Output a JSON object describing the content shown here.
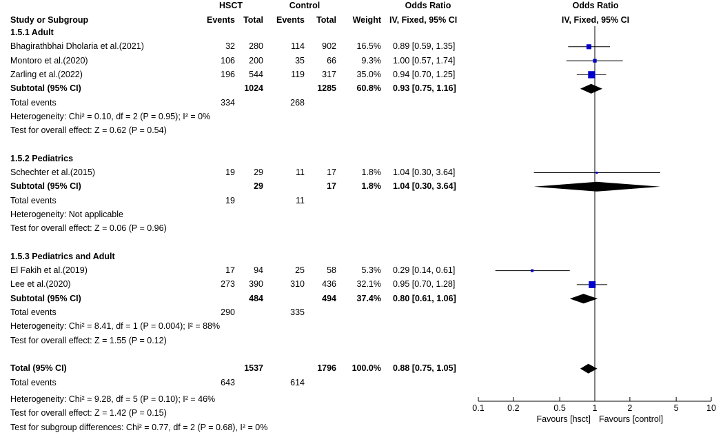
{
  "header": {
    "hsct": "HSCT",
    "control": "Control",
    "odds_ratio_table": "Odds Ratio",
    "odds_ratio_plot": "Odds Ratio",
    "study": "Study or Subgroup",
    "events1": "Events",
    "total1": "Total",
    "events2": "Events",
    "total2": "Total",
    "weight": "Weight",
    "method_table": "IV, Fixed, 95% CI",
    "method_plot": "IV, Fixed, 95% CI"
  },
  "rows": [
    {
      "kind": "group",
      "label": "1.5.1 Adult"
    },
    {
      "kind": "study",
      "label": "Bhagirathbhai Dholaria et al.(2021)",
      "e1": "32",
      "n1": "280",
      "e2": "114",
      "n2": "902",
      "w": "16.5%",
      "ci": "0.89 [0.59, 1.35]"
    },
    {
      "kind": "study",
      "label": "Montoro et al.(2020)",
      "e1": "106",
      "n1": "200",
      "e2": "35",
      "n2": "66",
      "w": "9.3%",
      "ci": "1.00 [0.57, 1.74]"
    },
    {
      "kind": "study",
      "label": "Zarling et al.(2022)",
      "e1": "196",
      "n1": "544",
      "e2": "119",
      "n2": "317",
      "w": "35.0%",
      "ci": "0.94 [0.70, 1.25]"
    },
    {
      "kind": "subtotal",
      "label": "Subtotal (95% CI)",
      "n1": "1024",
      "n2": "1285",
      "w": "60.8%",
      "ci": "0.93 [0.75, 1.16]"
    },
    {
      "kind": "events",
      "label": "Total events",
      "e1": "334",
      "e2": "268"
    },
    {
      "kind": "note",
      "label": "Heterogeneity: Chi² = 0.10, df = 2 (P = 0.95); I² = 0%"
    },
    {
      "kind": "note",
      "label": "Test for overall effect: Z = 0.62 (P = 0.54)"
    },
    {
      "kind": "blank"
    },
    {
      "kind": "group",
      "label": "1.5.2 Pediatrics"
    },
    {
      "kind": "study",
      "label": "Schechter et al.(2015)",
      "e1": "19",
      "n1": "29",
      "e2": "11",
      "n2": "17",
      "w": "1.8%",
      "ci": "1.04 [0.30, 3.64]"
    },
    {
      "kind": "subtotal",
      "label": "Subtotal (95% CI)",
      "n1": "29",
      "n2": "17",
      "w": "1.8%",
      "ci": "1.04 [0.30, 3.64]"
    },
    {
      "kind": "events",
      "label": "Total events",
      "e1": "19",
      "e2": "11"
    },
    {
      "kind": "note",
      "label": "Heterogeneity: Not applicable"
    },
    {
      "kind": "note",
      "label": "Test for overall effect: Z = 0.06 (P = 0.96)"
    },
    {
      "kind": "blank"
    },
    {
      "kind": "group",
      "label": "1.5.3 Pediatrics and Adult"
    },
    {
      "kind": "study",
      "label": "El Fakih et al.(2019)",
      "e1": "17",
      "n1": "94",
      "e2": "25",
      "n2": "58",
      "w": "5.3%",
      "ci": "0.29 [0.14, 0.61]"
    },
    {
      "kind": "study",
      "label": "Lee et al.(2020)",
      "e1": "273",
      "n1": "390",
      "e2": "310",
      "n2": "436",
      "w": "32.1%",
      "ci": "0.95 [0.70, 1.28]"
    },
    {
      "kind": "subtotal",
      "label": "Subtotal (95% CI)",
      "n1": "484",
      "n2": "494",
      "w": "37.4%",
      "ci": "0.80 [0.61, 1.06]"
    },
    {
      "kind": "events",
      "label": "Total events",
      "e1": "290",
      "e2": "335"
    },
    {
      "kind": "note",
      "label": "Heterogeneity: Chi² = 8.41, df = 1 (P = 0.004); I² = 88%"
    },
    {
      "kind": "note",
      "label": "Test for overall effect: Z = 1.55 (P = 0.12)"
    },
    {
      "kind": "blank"
    },
    {
      "kind": "total",
      "label": "Total (95% CI)",
      "n1": "1537",
      "n2": "1796",
      "w": "100.0%",
      "ci": "0.88 [0.75, 1.05]"
    },
    {
      "kind": "events",
      "label": "Total events",
      "e1": "643",
      "e2": "614"
    }
  ],
  "footer": [
    "Heterogeneity: Chi² = 9.28, df = 5 (P = 0.10); I² = 46%",
    "Test for overall effect: Z = 1.42 (P = 0.15)",
    "Test for subgroup differences: Chi² = 0.77, df = 2 (P = 0.68), I² = 0%"
  ],
  "colors": {
    "square": "#0000cc",
    "diamond": "#000000",
    "line": "#000000"
  },
  "chart_data": {
    "type": "scatter",
    "scale": "log",
    "xlim": [
      0.1,
      10
    ],
    "ticks": [
      0.1,
      0.2,
      0.5,
      1,
      2,
      5,
      10
    ],
    "tick_labels": [
      "0.1",
      "0.2",
      "0.5",
      "1",
      "2",
      "5",
      "10"
    ],
    "favours_left": "Favours [hsct]",
    "favours_right": "Favours [control]",
    "reference_line": 1,
    "studies": [
      {
        "row": 1,
        "or": 0.89,
        "lo": 0.59,
        "hi": 1.35,
        "weight": 16.5
      },
      {
        "row": 2,
        "or": 1.0,
        "lo": 0.57,
        "hi": 1.74,
        "weight": 9.3
      },
      {
        "row": 3,
        "or": 0.94,
        "lo": 0.7,
        "hi": 1.25,
        "weight": 35.0
      },
      {
        "row": 10,
        "or": 1.04,
        "lo": 0.3,
        "hi": 3.64,
        "weight": 1.8
      },
      {
        "row": 17,
        "or": 0.29,
        "lo": 0.14,
        "hi": 0.61,
        "weight": 5.3
      },
      {
        "row": 18,
        "or": 0.95,
        "lo": 0.7,
        "hi": 1.28,
        "weight": 32.1
      }
    ],
    "diamonds": [
      {
        "row": 4,
        "or": 0.93,
        "lo": 0.75,
        "hi": 1.16
      },
      {
        "row": 11,
        "or": 1.04,
        "lo": 0.3,
        "hi": 3.64
      },
      {
        "row": 19,
        "or": 0.8,
        "lo": 0.61,
        "hi": 1.06
      },
      {
        "row": 24,
        "or": 0.88,
        "lo": 0.75,
        "hi": 1.05
      }
    ]
  }
}
